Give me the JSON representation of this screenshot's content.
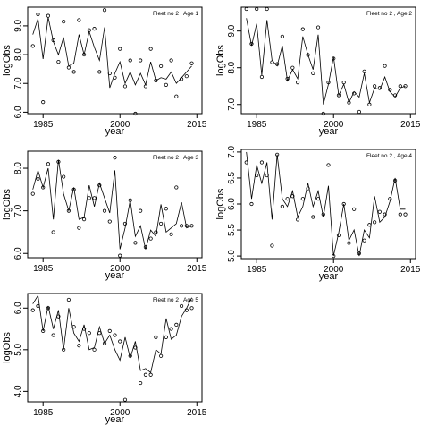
{
  "chart_data": [
    {
      "type": "line",
      "title": "Fleet no 2 , Age 1",
      "xlabel": "year",
      "ylabel": "logObs",
      "xlim": [
        1982,
        2016
      ],
      "ylim": [
        5.95,
        9.65
      ],
      "xticks": [
        1985,
        2000,
        2015
      ],
      "xtick_labels": [
        "1985",
        "2000",
        "2015"
      ],
      "yticks": [
        6,
        7,
        8,
        9
      ],
      "ytick_labels": [
        "6.0",
        "7.0",
        "8.0",
        "9.0"
      ],
      "x": [
        1983,
        1984,
        1985,
        1986,
        1987,
        1988,
        1989,
        1990,
        1991,
        1992,
        1993,
        1994,
        1995,
        1996,
        1997,
        1998,
        1999,
        2000,
        2001,
        2002,
        2003,
        2004,
        2005,
        2006,
        2007,
        2008,
        2009,
        2010,
        2011,
        2012,
        2013,
        2014
      ],
      "series": [
        {
          "role": "observed",
          "markers": "open-circle",
          "values": [
            8.3,
            9.4,
            6.35,
            9.35,
            8.5,
            7.75,
            9.15,
            7.55,
            7.4,
            9.2,
            8.0,
            8.85,
            8.9,
            7.4,
            9.55,
            7.35,
            7.2,
            8.2,
            6.9,
            7.8,
            5.95,
            7.8,
            6.9,
            8.2,
            7.1,
            7.6,
            6.95,
            7.8,
            6.55,
            7.15,
            7.25,
            7.7
          ]
        },
        {
          "role": "fitted",
          "markers": "line",
          "values": [
            8.7,
            9.25,
            7.85,
            9.3,
            8.45,
            8.0,
            8.6,
            7.6,
            7.7,
            8.7,
            8.0,
            8.8,
            8.25,
            7.8,
            8.95,
            6.85,
            7.35,
            7.75,
            7.0,
            7.4,
            6.95,
            7.35,
            6.95,
            7.75,
            7.1,
            7.2,
            7.15,
            7.4,
            7.0,
            7.2,
            7.4,
            7.6
          ]
        }
      ]
    },
    {
      "type": "line",
      "title": "Fleet no 2 , Age 2",
      "xlabel": "year",
      "ylabel": "logObs",
      "xlim": [
        1982,
        2016
      ],
      "ylim": [
        6.75,
        9.65
      ],
      "xticks": [
        1985,
        2000,
        2015
      ],
      "xtick_labels": [
        "1985",
        "2000",
        "2015"
      ],
      "yticks": [
        7,
        8,
        9
      ],
      "ytick_labels": [
        "7.0",
        "8.0",
        "9.0"
      ],
      "x": [
        1983,
        1984,
        1985,
        1986,
        1987,
        1988,
        1989,
        1990,
        1991,
        1992,
        1993,
        1994,
        1995,
        1996,
        1997,
        1998,
        1999,
        2000,
        2001,
        2002,
        2003,
        2004,
        2005,
        2006,
        2007,
        2008,
        2009,
        2010,
        2011,
        2012,
        2013,
        2014
      ],
      "series": [
        {
          "role": "observed",
          "markers": "open-circle",
          "values": [
            9.6,
            8.65,
            9.6,
            7.75,
            9.6,
            8.15,
            8.1,
            8.85,
            7.7,
            8.0,
            7.6,
            9.05,
            8.35,
            7.85,
            9.1,
            6.75,
            7.6,
            8.25,
            7.25,
            7.6,
            7.05,
            7.3,
            6.8,
            7.9,
            7.0,
            7.5,
            7.45,
            8.05,
            7.4,
            7.25,
            7.5,
            7.5
          ]
        },
        {
          "role": "fitted",
          "markers": "line",
          "values": [
            9.35,
            8.6,
            9.2,
            7.8,
            9.3,
            8.2,
            8.05,
            8.6,
            7.65,
            7.95,
            7.7,
            8.85,
            8.35,
            7.95,
            8.9,
            7.0,
            7.55,
            8.3,
            7.25,
            7.55,
            7.05,
            7.35,
            7.2,
            7.85,
            7.05,
            7.45,
            7.4,
            7.75,
            7.35,
            7.2,
            7.45,
            7.5
          ]
        }
      ]
    },
    {
      "type": "line",
      "title": "Fleet no 2 , Age 3",
      "xlabel": "year",
      "ylabel": "logObs",
      "xlim": [
        1982,
        2016
      ],
      "ylim": [
        5.9,
        8.4
      ],
      "xticks": [
        1985,
        2000,
        2015
      ],
      "xtick_labels": [
        "1985",
        "2000",
        "2015"
      ],
      "yticks": [
        6,
        7,
        8
      ],
      "ytick_labels": [
        "6.0",
        "7.0",
        "8.0"
      ],
      "x": [
        1983,
        1984,
        1985,
        1986,
        1987,
        1988,
        1989,
        1990,
        1991,
        1992,
        1993,
        1994,
        1995,
        1996,
        1997,
        1998,
        1999,
        2000,
        2001,
        2002,
        2003,
        2004,
        2005,
        2006,
        2007,
        2008,
        2009,
        2010,
        2011,
        2012,
        2013,
        2014
      ],
      "series": [
        {
          "role": "observed",
          "markers": "open-circle",
          "values": [
            7.4,
            7.75,
            7.55,
            8.1,
            6.5,
            8.15,
            7.8,
            7.0,
            7.5,
            6.6,
            6.8,
            7.3,
            7.3,
            7.6,
            7.0,
            6.75,
            8.25,
            5.95,
            6.7,
            7.25,
            6.25,
            7.0,
            6.15,
            6.35,
            6.5,
            6.7,
            7.05,
            6.45,
            7.55,
            6.65,
            6.65,
            6.65
          ]
        },
        {
          "role": "fitted",
          "markers": "line",
          "values": [
            7.5,
            7.95,
            7.55,
            8.0,
            6.8,
            8.2,
            7.4,
            7.0,
            7.55,
            6.8,
            6.85,
            7.6,
            7.1,
            7.65,
            7.3,
            6.95,
            7.95,
            6.1,
            6.6,
            7.25,
            6.4,
            6.65,
            6.1,
            6.55,
            6.4,
            7.15,
            6.5,
            6.6,
            6.7,
            7.2,
            6.6,
            6.65
          ]
        }
      ]
    },
    {
      "type": "line",
      "title": "Fleet no 2 , Age 4",
      "xlabel": "year",
      "ylabel": "logObs",
      "xlim": [
        1982,
        2016
      ],
      "ylim": [
        4.95,
        7.05
      ],
      "xticks": [
        1985,
        2000,
        2015
      ],
      "xtick_labels": [
        "1985",
        "2000",
        "2015"
      ],
      "yticks": [
        5.0,
        5.5,
        6.0,
        6.5,
        7.0
      ],
      "ytick_labels": [
        "5.0",
        "5.5",
        "6.0",
        "6.5",
        "7.0"
      ],
      "x": [
        1983,
        1984,
        1985,
        1986,
        1987,
        1988,
        1989,
        1990,
        1991,
        1992,
        1993,
        1994,
        1995,
        1996,
        1997,
        1998,
        1999,
        2000,
        2001,
        2002,
        2003,
        2004,
        2005,
        2006,
        2007,
        2008,
        2009,
        2010,
        2011,
        2012,
        2013,
        2014
      ],
      "series": [
        {
          "role": "observed",
          "markers": "open-circle",
          "values": [
            6.8,
            6.0,
            6.55,
            6.8,
            6.55,
            5.2,
            6.95,
            5.95,
            6.1,
            6.15,
            5.7,
            6.1,
            6.3,
            5.75,
            6.1,
            5.8,
            6.75,
            5.0,
            5.4,
            6.0,
            5.25,
            5.9,
            5.05,
            5.3,
            5.6,
            5.65,
            5.85,
            5.8,
            6.1,
            6.45,
            5.8,
            5.8
          ]
        },
        {
          "role": "fitted",
          "markers": "line",
          "values": [
            7.0,
            6.1,
            6.75,
            6.4,
            6.8,
            5.7,
            6.95,
            6.1,
            5.95,
            6.25,
            5.75,
            5.95,
            6.4,
            5.95,
            6.25,
            5.75,
            6.35,
            5.0,
            5.45,
            6.0,
            5.3,
            5.5,
            5.0,
            5.5,
            5.35,
            6.15,
            5.65,
            5.75,
            6.05,
            6.5,
            5.9,
            5.9
          ]
        }
      ]
    },
    {
      "type": "line",
      "title": "Fleet no 2 , Age 5",
      "xlabel": "year",
      "ylabel": "logObs",
      "xlim": [
        1982,
        2016
      ],
      "ylim": [
        3.75,
        6.35
      ],
      "xticks": [
        1985,
        2000,
        2015
      ],
      "xtick_labels": [
        "1985",
        "2000",
        "2015"
      ],
      "yticks": [
        4,
        5,
        6
      ],
      "ytick_labels": [
        "4.0",
        "5.0",
        "6.0"
      ],
      "x": [
        1983,
        1984,
        1985,
        1986,
        1987,
        1988,
        1989,
        1990,
        1991,
        1992,
        1993,
        1994,
        1995,
        1996,
        1997,
        1998,
        1999,
        2000,
        2001,
        2002,
        2003,
        2004,
        2005,
        2006,
        2007,
        2008,
        2009,
        2010,
        2011,
        2012,
        2013,
        2014
      ],
      "series": [
        {
          "role": "observed",
          "markers": "open-circle",
          "values": [
            5.95,
            6.05,
            5.45,
            6.0,
            5.35,
            5.8,
            5.0,
            6.2,
            5.55,
            5.1,
            5.5,
            5.4,
            5.0,
            5.4,
            5.15,
            5.45,
            5.35,
            5.2,
            3.8,
            4.85,
            5.05,
            4.2,
            4.4,
            4.4,
            5.3,
            4.85,
            5.3,
            5.5,
            5.6,
            6.05,
            5.95,
            6.0
          ]
        },
        {
          "role": "fitted",
          "markers": "line",
          "values": [
            6.1,
            6.3,
            5.45,
            6.05,
            5.5,
            5.95,
            5.0,
            6.0,
            5.4,
            5.2,
            5.6,
            5.0,
            5.05,
            5.55,
            5.15,
            5.35,
            5.0,
            4.75,
            5.3,
            4.8,
            5.2,
            4.5,
            4.55,
            4.45,
            5.0,
            4.9,
            5.75,
            5.25,
            5.35,
            5.8,
            6.0,
            6.25
          ]
        }
      ]
    }
  ]
}
